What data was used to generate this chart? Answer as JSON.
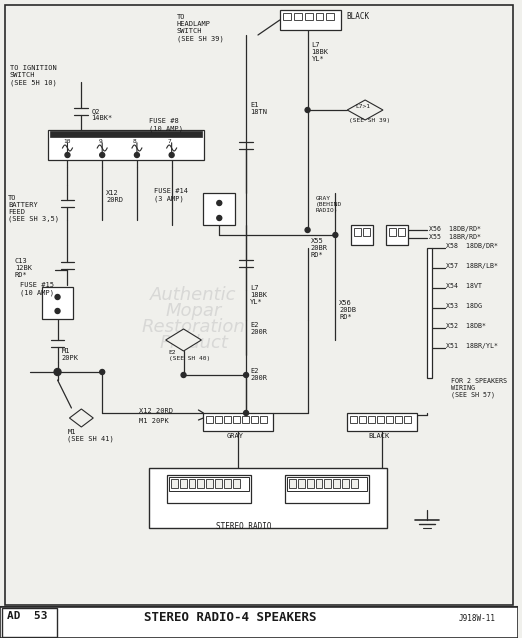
{
  "title": "STEREO RADIO-4 SPEAKERS",
  "page_id": "AD  53",
  "diagram_id": "J918W-11",
  "bg_color": "#f0f0ec",
  "line_color": "#2a2a2a",
  "text_color": "#1a1a1a",
  "wm_lines": [
    "Authentic",
    "Mopar",
    "Restoration",
    "Product"
  ]
}
